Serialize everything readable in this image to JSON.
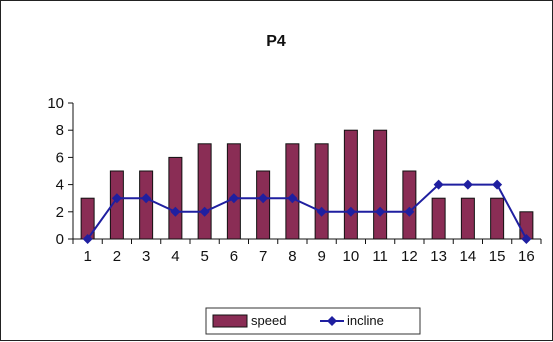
{
  "chart_data": {
    "type": "bar",
    "title": "P4",
    "xlabel": "",
    "ylabel": "",
    "categories": [
      "1",
      "2",
      "3",
      "4",
      "5",
      "6",
      "7",
      "8",
      "9",
      "10",
      "11",
      "12",
      "13",
      "14",
      "15",
      "16"
    ],
    "ylim": [
      0,
      10
    ],
    "yticks": [
      "0",
      "2",
      "4",
      "6",
      "8",
      "10"
    ],
    "series": [
      {
        "name": "speed",
        "kind": "bar",
        "color": "#8a2d55",
        "values": [
          3,
          5,
          5,
          6,
          7,
          7,
          5,
          7,
          7,
          8,
          8,
          5,
          3,
          3,
          3,
          2
        ]
      },
      {
        "name": "incline",
        "kind": "line",
        "color": "#1f1fa0",
        "values": [
          0,
          3,
          3,
          2,
          2,
          3,
          3,
          3,
          2,
          2,
          2,
          2,
          4,
          4,
          4,
          0
        ]
      }
    ],
    "grid": false,
    "legend": "bottom"
  }
}
